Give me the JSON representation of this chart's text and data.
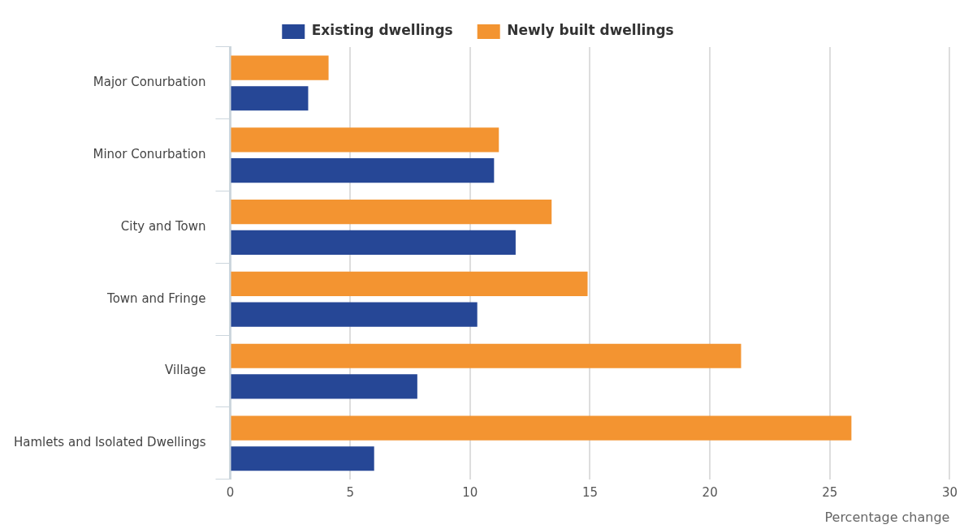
{
  "chart_data": {
    "type": "bar",
    "orientation": "horizontal",
    "categories": [
      "Major Conurbation",
      "Minor Conurbation",
      "City and Town",
      "Town and Fringe",
      "Village",
      "Hamlets and Isolated Dwellings"
    ],
    "series": [
      {
        "name": "Existing dwellings",
        "color": "#264796",
        "values": [
          3.25,
          11.0,
          11.9,
          10.3,
          7.8,
          6.0
        ]
      },
      {
        "name": "Newly built dwellings",
        "color": "#f39431",
        "values": [
          4.1,
          11.2,
          13.4,
          14.9,
          21.3,
          25.9
        ]
      }
    ],
    "xlabel": "Percentage change",
    "xlim": [
      0,
      30
    ],
    "xticks": [
      0,
      5,
      10,
      15,
      20,
      25,
      30
    ],
    "grid": "x",
    "legend": "top"
  }
}
